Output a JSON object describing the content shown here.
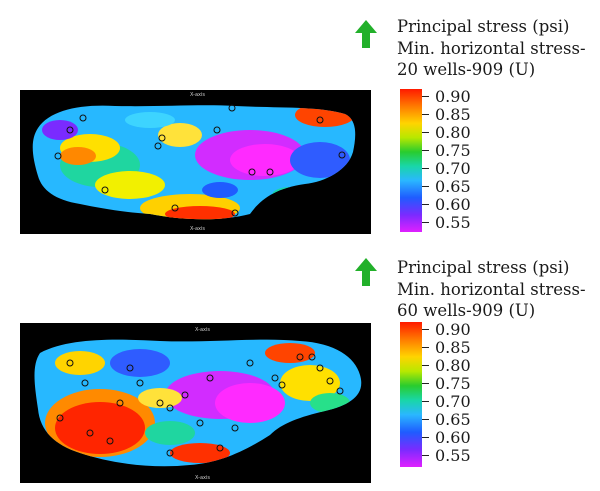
{
  "panels": [
    {
      "title": "Principal stress (psi)",
      "subtitle": "Min. horizontal stress-",
      "wells": "20 wells-909 (U)",
      "axis_top": "X-axis",
      "axis_bottom": "X-axis"
    },
    {
      "title": "Principal stress (psi)",
      "subtitle": "Min. horizontal stress-",
      "wells": "60 wells-909 (U)",
      "axis_top": "X-axis",
      "axis_bottom": "X-axis"
    }
  ],
  "colorbar_ticks": [
    "0.90",
    "0.85",
    "0.80",
    "0.75",
    "0.70",
    "0.65",
    "0.60",
    "0.55"
  ],
  "colors": {
    "north_arrow": "#22b02a",
    "map_background": "#000000"
  },
  "icons": [
    "north-arrow-icon",
    "well-marker-icon"
  ]
}
